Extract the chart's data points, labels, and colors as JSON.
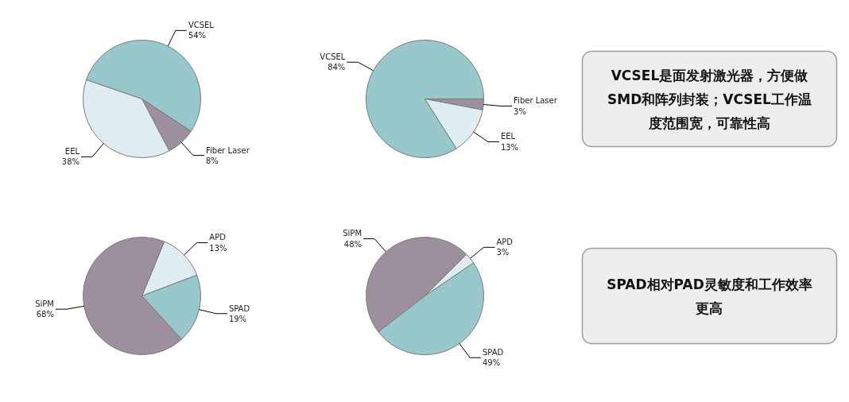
{
  "chart_data": [
    {
      "type": "pie",
      "categories": [
        "VCSEL",
        "Fiber Laser",
        "EEL"
      ],
      "values": [
        54,
        8,
        38
      ],
      "colors": [
        "#98c8cc",
        "#9e8f9e",
        "#dfecf0"
      ],
      "value_labels": [
        "54%",
        "8%",
        "38%"
      ]
    },
    {
      "type": "pie",
      "categories": [
        "VCSEL",
        "Fiber Laser",
        "EEL"
      ],
      "values": [
        84,
        3,
        13
      ],
      "colors": [
        "#98c8cc",
        "#9e8f9e",
        "#dfecf0"
      ],
      "value_labels": [
        "84%",
        "3%",
        "13%"
      ]
    },
    {
      "type": "other",
      "annotations": [
        "VCSEL是面发射激光器，方便做SMD和阵列封装；VCSEL工作温度范围宽，可靠性高"
      ]
    },
    {
      "type": "pie",
      "categories": [
        "APD",
        "SPAD",
        "SiPM"
      ],
      "values": [
        13,
        19,
        68
      ],
      "colors": [
        "#dfecf0",
        "#98c8cc",
        "#9e8f9e"
      ],
      "value_labels": [
        "13%",
        "19%",
        "68%"
      ]
    },
    {
      "type": "pie",
      "categories": [
        "SiPM",
        "APD",
        "SPAD"
      ],
      "values": [
        48,
        3,
        49
      ],
      "colors": [
        "#9e8f9e",
        "#dfecf0",
        "#98c8cc"
      ],
      "value_labels": [
        "48%",
        "3%",
        "49%"
      ]
    },
    {
      "type": "other",
      "annotations": [
        "SPAD相对PAD灵敏度和工作效率更高"
      ]
    }
  ]
}
